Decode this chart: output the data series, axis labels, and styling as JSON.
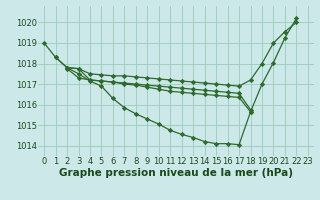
{
  "title": "Graphe pression niveau de la mer (hPa)",
  "xlim": [
    -0.5,
    23.5
  ],
  "ylim": [
    1013.5,
    1020.8
  ],
  "yticks": [
    1014,
    1015,
    1016,
    1017,
    1018,
    1019,
    1020
  ],
  "xticks": [
    0,
    1,
    2,
    3,
    4,
    5,
    6,
    7,
    8,
    9,
    10,
    11,
    12,
    13,
    14,
    15,
    16,
    17,
    18,
    19,
    20,
    21,
    22,
    23
  ],
  "background_color": "#cce8e8",
  "grid_color": "#99ccbb",
  "line_color": "#2d6a2d",
  "marker": "D",
  "markersize": 2.2,
  "linewidth": 0.9,
  "lines": [
    {
      "x": [
        0,
        1,
        2,
        3,
        4,
        5,
        6,
        7,
        8,
        9,
        10,
        11,
        12,
        13,
        14,
        15,
        16,
        17,
        18,
        19,
        20,
        21,
        22
      ],
      "y": [
        1019.0,
        1018.3,
        1017.8,
        1017.5,
        1017.15,
        1016.9,
        1016.3,
        1015.85,
        1015.55,
        1015.3,
        1015.05,
        1014.75,
        1014.55,
        1014.4,
        1014.2,
        1014.1,
        1014.1,
        1014.05,
        1015.65,
        1017.0,
        1018.05,
        1019.25,
        1020.2
      ]
    },
    {
      "x": [
        1,
        2,
        3,
        4,
        5,
        6,
        7,
        8,
        9,
        10,
        11,
        12,
        13,
        14,
        15,
        16,
        17,
        18,
        19,
        20,
        21,
        22
      ],
      "y": [
        1018.3,
        1017.8,
        1017.75,
        1017.5,
        1017.45,
        1017.4,
        1017.4,
        1017.35,
        1017.3,
        1017.25,
        1017.2,
        1017.15,
        1017.1,
        1017.05,
        1017.0,
        1016.95,
        1016.9,
        1017.2,
        1018.0,
        1019.0,
        1019.55,
        1020.0
      ]
    },
    {
      "x": [
        2,
        3,
        4,
        5,
        6,
        7,
        8,
        9,
        10,
        11,
        12,
        13,
        14,
        15,
        16,
        17,
        18
      ],
      "y": [
        1017.8,
        1017.75,
        1017.2,
        1017.15,
        1017.1,
        1017.05,
        1017.0,
        1016.95,
        1016.9,
        1016.85,
        1016.8,
        1016.75,
        1016.7,
        1016.65,
        1016.6,
        1016.55,
        1015.75
      ]
    },
    {
      "x": [
        2,
        3,
        4,
        5,
        6,
        7,
        8,
        9,
        10,
        11,
        12,
        13,
        14,
        15,
        16,
        17,
        18
      ],
      "y": [
        1017.75,
        1017.3,
        1017.2,
        1017.15,
        1017.1,
        1017.0,
        1016.95,
        1016.85,
        1016.75,
        1016.65,
        1016.6,
        1016.55,
        1016.5,
        1016.45,
        1016.4,
        1016.35,
        1015.65
      ]
    }
  ],
  "font_color": "#1a4a1a",
  "title_fontsize": 7.5,
  "tick_fontsize": 6.0
}
